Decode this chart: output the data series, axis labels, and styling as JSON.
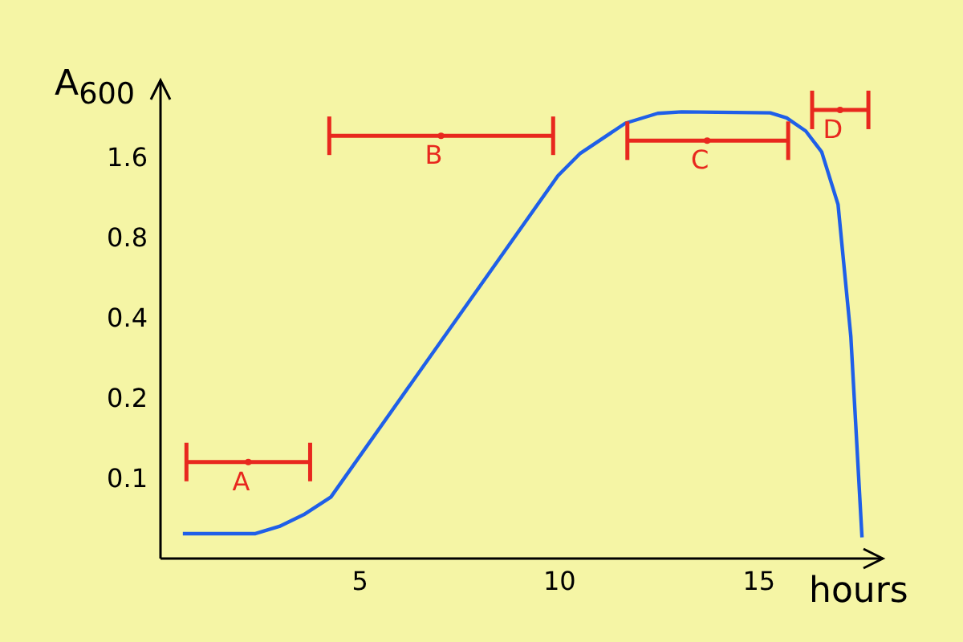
{
  "chart_data": {
    "type": "line",
    "xlabel": "hours",
    "ylabel": "A$_{600}$",
    "log": "y",
    "xlim": [
      0,
      18.1
    ],
    "xticks": [
      5,
      10,
      15
    ],
    "ylim": [
      0.05,
      3.1
    ],
    "yticks": [
      0.1,
      0.2,
      0.4,
      0.8,
      1.6
    ],
    "grid": false,
    "marker": "none",
    "line_style": "solid",
    "series": [
      {
        "color": "#1f5fe8",
        "x": [
          0.56,
          2.38,
          2.98,
          3.59,
          4.27,
          9.96,
          10.52,
          11.65,
          12.46,
          13.06,
          15.28,
          15.69,
          16.17,
          16.57,
          16.98,
          17.3,
          17.58
        ],
        "values": [
          0.062,
          0.062,
          0.066,
          0.073,
          0.085,
          1.36,
          1.65,
          2.14,
          2.33,
          2.36,
          2.34,
          2.24,
          2.0,
          1.67,
          1.06,
          0.34,
          0.06
        ]
      },
      {
        "type": "scatter",
        "name": "A",
        "color": "#e8281e",
        "marker": "circle",
        "x": [
          2.2
        ],
        "values": [
          0.115
        ],
        "xerrors": [
          [
            0.65,
            3.75
          ]
        ]
      },
      {
        "type": "scatter",
        "name": "B",
        "color": "#e8281e",
        "marker": "circle",
        "x": [
          7.03
        ],
        "values": [
          1.92
        ],
        "xerrors": [
          [
            4.23,
            9.84
          ]
        ]
      },
      {
        "type": "scatter",
        "name": "C",
        "color": "#e8281e",
        "marker": "circle",
        "x": [
          13.7
        ],
        "values": [
          1.84
        ],
        "xerrors": [
          [
            11.7,
            15.73
          ]
        ]
      },
      {
        "type": "scatter",
        "name": "D",
        "color": "#e8281e",
        "marker": "circle",
        "x": [
          17.03
        ],
        "values": [
          2.4
        ],
        "xerrors": [
          [
            16.33,
            17.74
          ]
        ]
      }
    ]
  }
}
